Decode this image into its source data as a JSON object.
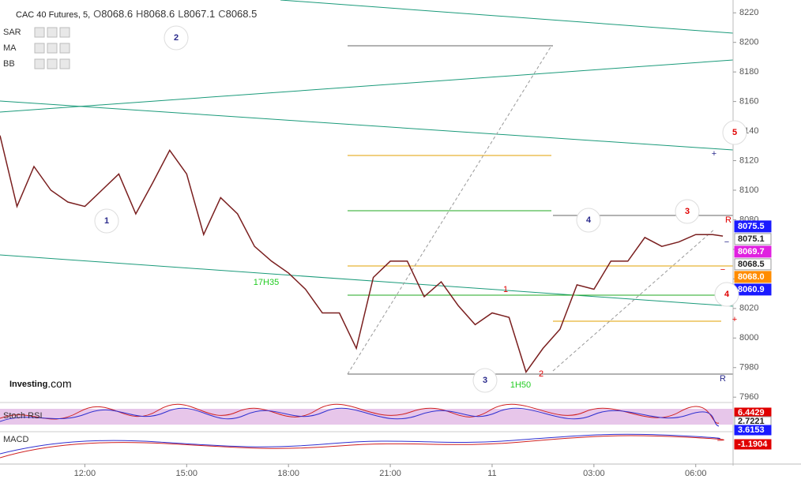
{
  "header": {
    "symbol": "CAC 40 Futures, 5,",
    "ohlc": [
      {
        "label": "O",
        "value": 8068.6
      },
      {
        "label": "H",
        "value": 8068.6
      },
      {
        "label": "L",
        "value": 8067.1
      },
      {
        "label": "C",
        "value": 8068.5
      }
    ],
    "indicators": [
      "SAR",
      "MA",
      "BB"
    ]
  },
  "logo": {
    "name": "Investing",
    "suffix": ".com"
  },
  "chart_data": {
    "type": "line",
    "x": [
      9.5,
      10,
      10.5,
      11,
      11.5,
      12,
      12.5,
      13,
      13.5,
      14,
      14.5,
      15,
      15.5,
      16,
      16.5,
      17,
      17.5,
      18,
      18.5,
      19,
      19.5,
      20,
      20.5,
      21,
      21.5,
      22,
      22.5,
      23,
      23.5,
      24,
      24.5,
      25,
      25.5,
      26,
      26.5,
      27,
      27.5,
      28,
      28.5,
      29,
      29.5,
      30,
      30.5,
      30.8
    ],
    "series": [
      {
        "name": "CAC 40 Futures",
        "color": "#7a1f1f",
        "values": [
          8137,
          8089,
          8116,
          8100,
          8092,
          8089,
          8100,
          8111,
          8084,
          8105,
          8127,
          8111,
          8070,
          8095,
          8084,
          8062,
          8052,
          8044,
          8033,
          8017,
          8017,
          7993,
          8041,
          8052,
          8052,
          8028,
          8038,
          8022,
          8009,
          8017,
          8014,
          7977,
          7993,
          8006,
          8036,
          8033,
          8052,
          8052,
          8068,
          8062,
          8065,
          8070,
          8070,
          8069
        ]
      }
    ],
    "xlim": [
      9.5,
      31.1
    ],
    "xticks": [
      {
        "value": 12,
        "label": "12:00"
      },
      {
        "value": 15,
        "label": "15:00"
      },
      {
        "value": 18,
        "label": "18:00"
      },
      {
        "value": 21,
        "label": "21:00"
      },
      {
        "value": 24,
        "label": "11"
      },
      {
        "value": 27,
        "label": "03:00"
      },
      {
        "value": 30,
        "label": "06:00"
      }
    ],
    "ylim": [
      7948,
      8223
    ],
    "yticks": [
      7960,
      7980,
      8000,
      8020,
      8040,
      8060,
      8080,
      8100,
      8120,
      8140,
      8160,
      8180,
      8200,
      8220
    ],
    "price_labels": {
      "values": [
        8075.5,
        8075.1,
        8069.7,
        8068.5,
        8068.0,
        8060.9
      ],
      "value_labels": [
        "8075.5",
        "8075.1",
        "8069.7",
        "8068.5",
        "8068.0",
        "8060.9"
      ],
      "colors": [
        "#1a1aff",
        "#ffffff",
        "#e020e0",
        "#ffffff",
        "#ff8c00",
        "#1a1aff"
      ]
    },
    "annotations": [
      {
        "text": "2",
        "color": "#2b2b8c",
        "circle": true
      },
      {
        "text": "1",
        "color": "#2b2b8c",
        "circle": true
      },
      {
        "text": "3",
        "color": "#2b2b8c",
        "circle": true
      },
      {
        "text": "4",
        "color": "#2b2b8c",
        "circle": true
      },
      {
        "text": "3",
        "color": "#e00000",
        "circle": true
      },
      {
        "text": "5",
        "color": "#e00000",
        "circle": true
      },
      {
        "text": "4",
        "color": "#e00000",
        "circle": true
      },
      {
        "text": "1",
        "color": "#e00000",
        "circle": false
      },
      {
        "text": "2",
        "color": "#e00000",
        "circle": false
      },
      {
        "text": "17H35",
        "color": "#22cc22",
        "circle": false
      },
      {
        "text": "1H50",
        "color": "#22cc22",
        "circle": false
      },
      {
        "text": "R",
        "color": "#2b2b8c",
        "circle": false
      },
      {
        "text": "R",
        "color": "#e00000",
        "circle": false
      },
      {
        "text": "+",
        "color": "#2b2b8c",
        "circle": false
      },
      {
        "text": "+",
        "color": "#e00000",
        "circle": false
      },
      {
        "text": "−",
        "color": "#2b2b8c",
        "circle": false
      },
      {
        "text": "−",
        "color": "#e00000",
        "circle": false
      }
    ]
  },
  "panels": [
    {
      "name": "Stoch RSI",
      "values": [
        {
          "v": 6.4429,
          "color": "#e00000"
        },
        {
          "v": 2.7221,
          "color": "#ffffff"
        },
        {
          "v": 3.6153,
          "color": "#1a1aff"
        }
      ]
    },
    {
      "name": "MACD",
      "values": [
        {
          "v": -1.1904,
          "color": "#e00000"
        }
      ]
    }
  ]
}
